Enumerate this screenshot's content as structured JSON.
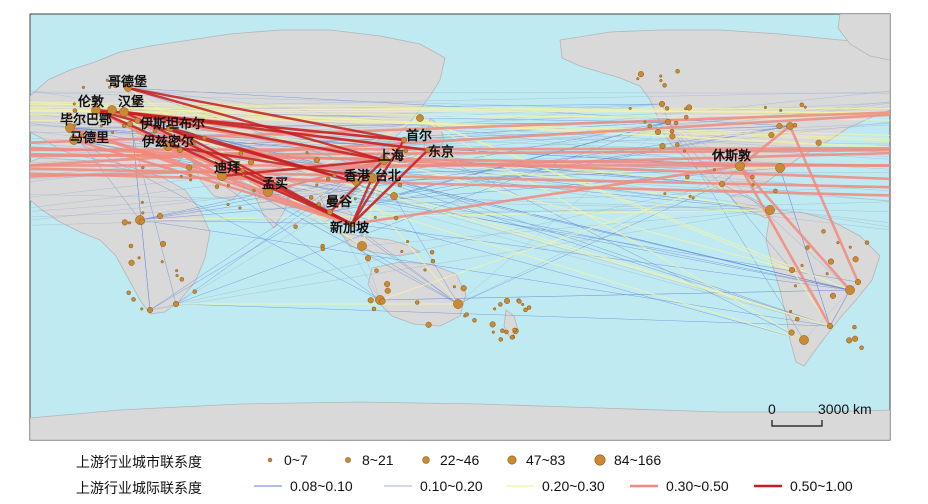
{
  "colors": {
    "ocean": "#bfeaf2",
    "land": "#d9d9d9",
    "land_border": "#b5b5b5",
    "node": "#c98a33",
    "node_stroke": "#8a5a18",
    "link_1": "#5b7fd6",
    "link_2": "#9fb3cf",
    "link_3": "#f4f2a8",
    "link_4": "#f08a7e",
    "link_5": "#c41f1f"
  },
  "cities": {
    "gothenburg": "哥德堡",
    "london": "伦敦",
    "hamburg": "汉堡",
    "bilbao": "毕尔巴鄂",
    "istanbul": "伊斯坦布尔",
    "madrid": "马德里",
    "izmir": "伊兹密尔",
    "dubai": "迪拜",
    "mumbai": "孟买",
    "bangkok": "曼谷",
    "singapore": "新加坡",
    "hongkong": "香港",
    "taipei": "台北",
    "shanghai": "上海",
    "seoul": "首尔",
    "tokyo": "东京",
    "houston": "休斯敦"
  },
  "scale_bar": {
    "zero": "0",
    "label": "3000 km"
  },
  "legend": {
    "city_title": "上游行业城市联系度",
    "city_classes": [
      {
        "label": "0~7",
        "size": 1
      },
      {
        "label": "8~21",
        "size": 2
      },
      {
        "label": "22~46",
        "size": 3
      },
      {
        "label": "47~83",
        "size": 4
      },
      {
        "label": "84~166",
        "size": 5
      }
    ],
    "link_title": "上游行业城际联系度",
    "link_classes": [
      {
        "label": "0.08~0.10",
        "level": 1
      },
      {
        "label": "0.10~0.20",
        "level": 2
      },
      {
        "label": "0.20~0.30",
        "level": 3
      },
      {
        "label": "0.30~0.50",
        "level": 4
      },
      {
        "label": "0.50~1.00",
        "level": 5
      }
    ]
  }
}
